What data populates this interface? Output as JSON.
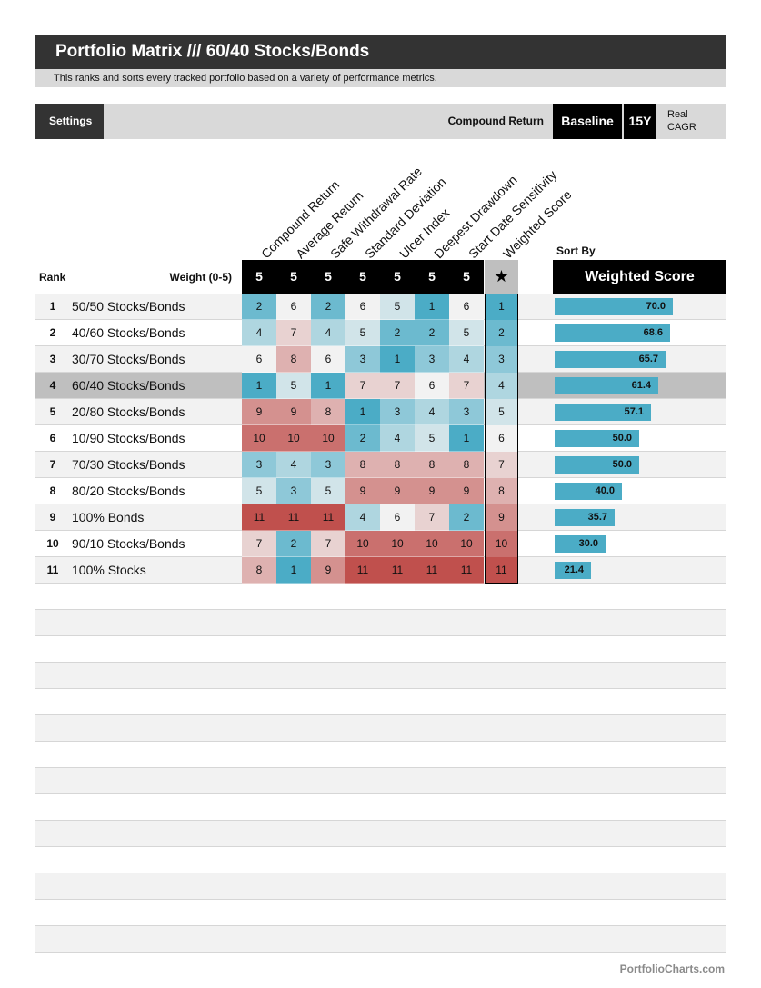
{
  "header": {
    "title": "Portfolio Matrix /// 60/40 Stocks/Bonds",
    "subtitle": "This ranks and sorts every tracked portfolio based on a variety of performance metrics."
  },
  "settings": {
    "settings_label": "Settings",
    "metric_label": "Compound Return",
    "baseline_label": "Baseline",
    "period_label": "15Y",
    "real_label": "Real",
    "cagr_label": "CAGR"
  },
  "table": {
    "rank_header": "Rank",
    "weight_header": "Weight (0-5)",
    "star_symbol": "★",
    "sort_by_label": "Sort By",
    "sort_by_value": "Weighted Score"
  },
  "footer": {
    "site": "PortfolioCharts.com"
  },
  "colors": {
    "best": "#4bacc6",
    "neutral": "#f2f2f2",
    "worst": "#c0504d",
    "bar": "#4bacc6",
    "highlight_row": "#bfbfbf"
  },
  "chart_data": {
    "type": "table",
    "metrics": [
      "Compound Return",
      "Average Return",
      "Safe Withdrawal Rate",
      "Standard Deviation",
      "Ulcer Index",
      "Deepest Drawdown",
      "Start Date Sensitivity",
      "Weighted Score"
    ],
    "weights": [
      "5",
      "5",
      "5",
      "5",
      "5",
      "5",
      "5"
    ],
    "highlighted_rank": 4,
    "rows": [
      {
        "rank": "1",
        "name": "50/50 Stocks/Bonds",
        "ranks": [
          2,
          6,
          2,
          6,
          5,
          1,
          6
        ],
        "score_rank": 1,
        "weighted_score": "70.0",
        "score_value": 70.0
      },
      {
        "rank": "2",
        "name": "40/60 Stocks/Bonds",
        "ranks": [
          4,
          7,
          4,
          5,
          2,
          2,
          5
        ],
        "score_rank": 2,
        "weighted_score": "68.6",
        "score_value": 68.6
      },
      {
        "rank": "3",
        "name": "30/70 Stocks/Bonds",
        "ranks": [
          6,
          8,
          6,
          3,
          1,
          3,
          4
        ],
        "score_rank": 3,
        "weighted_score": "65.7",
        "score_value": 65.7
      },
      {
        "rank": "4",
        "name": "60/40 Stocks/Bonds",
        "ranks": [
          1,
          5,
          1,
          7,
          7,
          6,
          7
        ],
        "score_rank": 4,
        "weighted_score": "61.4",
        "score_value": 61.4
      },
      {
        "rank": "5",
        "name": "20/80 Stocks/Bonds",
        "ranks": [
          9,
          9,
          8,
          1,
          3,
          4,
          3
        ],
        "score_rank": 5,
        "weighted_score": "57.1",
        "score_value": 57.1
      },
      {
        "rank": "6",
        "name": "10/90 Stocks/Bonds",
        "ranks": [
          10,
          10,
          10,
          2,
          4,
          5,
          1
        ],
        "score_rank": 6,
        "weighted_score": "50.0",
        "score_value": 50.0
      },
      {
        "rank": "7",
        "name": "70/30 Stocks/Bonds",
        "ranks": [
          3,
          4,
          3,
          8,
          8,
          8,
          8
        ],
        "score_rank": 7,
        "weighted_score": "50.0",
        "score_value": 50.0
      },
      {
        "rank": "8",
        "name": "80/20 Stocks/Bonds",
        "ranks": [
          5,
          3,
          5,
          9,
          9,
          9,
          9
        ],
        "score_rank": 8,
        "weighted_score": "40.0",
        "score_value": 40.0
      },
      {
        "rank": "9",
        "name": "100% Bonds",
        "ranks": [
          11,
          11,
          11,
          4,
          6,
          7,
          2
        ],
        "score_rank": 9,
        "weighted_score": "35.7",
        "score_value": 35.7
      },
      {
        "rank": "10",
        "name": "90/10 Stocks/Bonds",
        "ranks": [
          7,
          2,
          7,
          10,
          10,
          10,
          10
        ],
        "score_rank": 10,
        "weighted_score": "30.0",
        "score_value": 30.0
      },
      {
        "rank": "11",
        "name": "100% Stocks",
        "ranks": [
          8,
          1,
          9,
          11,
          11,
          11,
          11
        ],
        "score_rank": 11,
        "weighted_score": "21.4",
        "score_value": 21.4
      }
    ]
  }
}
